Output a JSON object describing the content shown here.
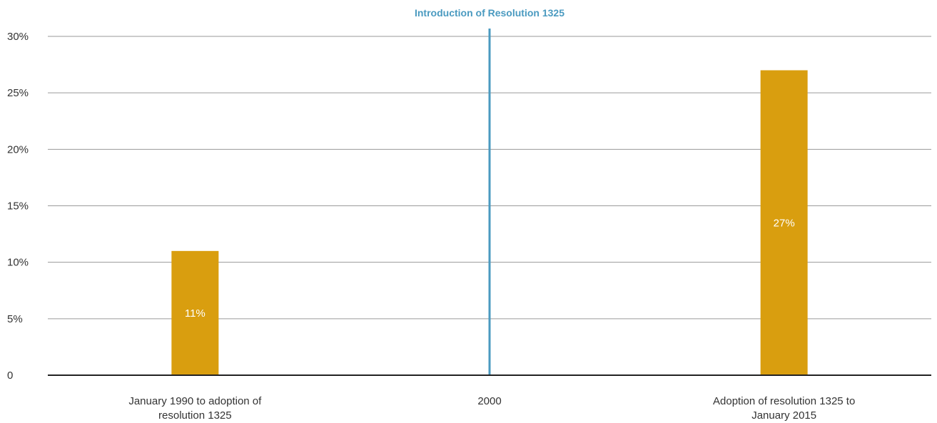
{
  "chart_data": {
    "type": "bar",
    "title": "",
    "xlabel": "",
    "ylabel": "",
    "categories": [
      [
        "January 1990 to adoption of",
        "resolution 1325"
      ],
      [
        "2000"
      ],
      [
        "Adoption of resolution 1325 to",
        "January 2015"
      ]
    ],
    "values": [
      11,
      null,
      27
    ],
    "data_labels": [
      "11%",
      "",
      "27%"
    ],
    "ylim": [
      0,
      30
    ],
    "yticks": [
      0,
      5,
      10,
      15,
      20,
      25,
      30
    ],
    "ytick_labels": [
      "0",
      "5%",
      "10%",
      "15%",
      "20%",
      "25%",
      "30%"
    ],
    "grid": true,
    "legend": "none",
    "annotation": {
      "text": "Introduction of Resolution 1325",
      "category": "2000",
      "type": "vertical-line"
    },
    "colors": {
      "bar": "#D99E0F",
      "annotation": "#4A9AC0",
      "grid": "#9A9A9A",
      "axis": "#222222"
    }
  }
}
